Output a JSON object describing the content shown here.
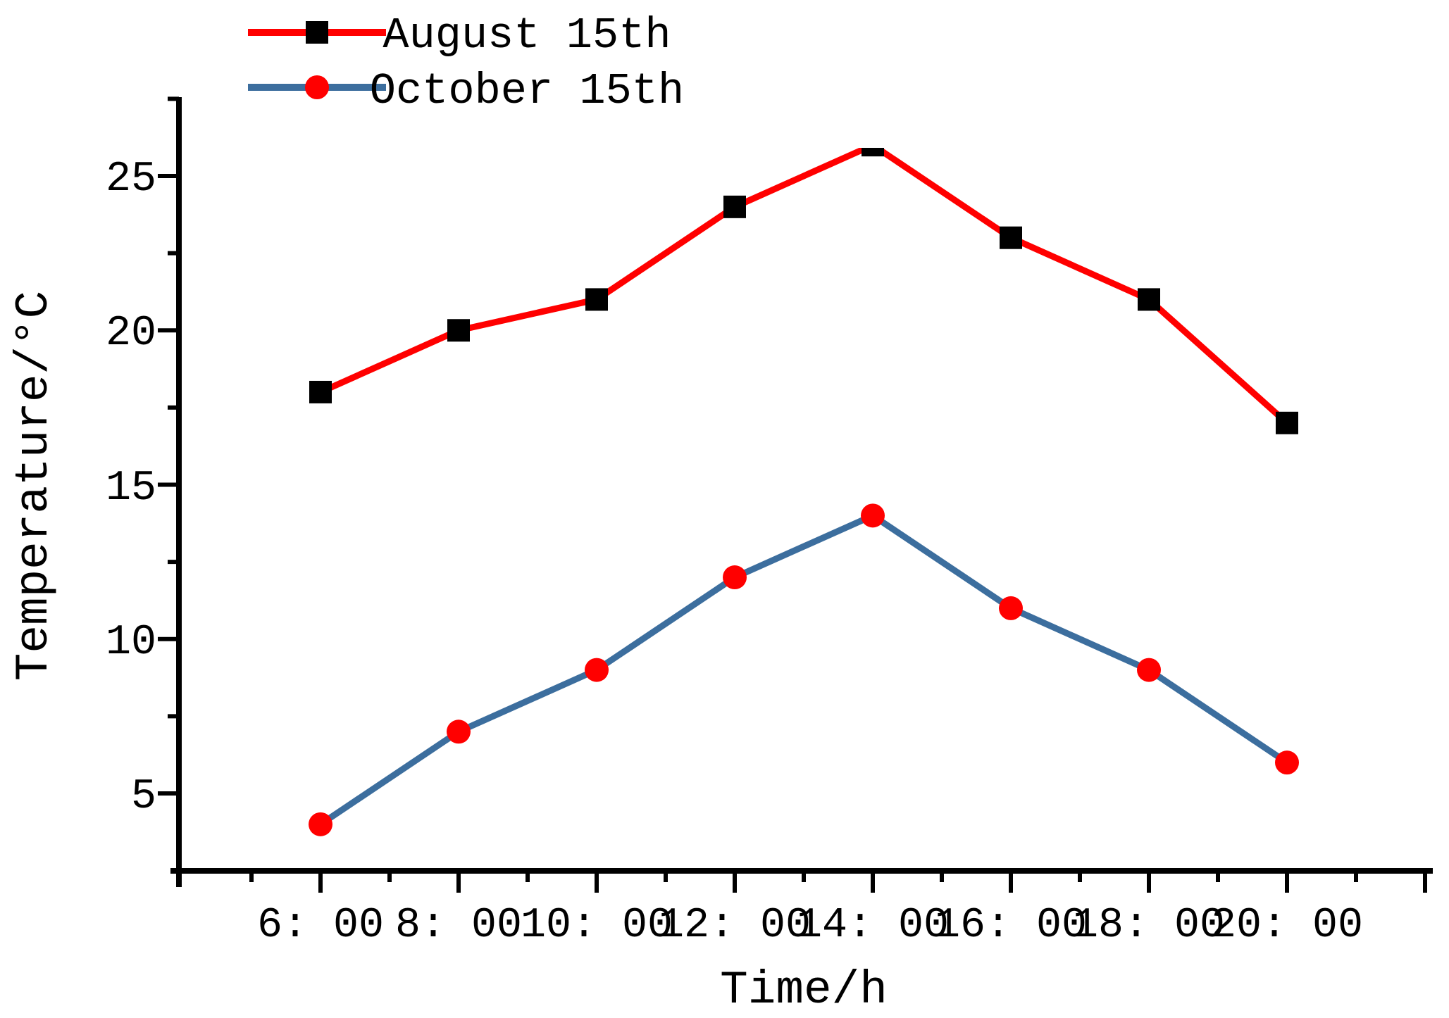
{
  "chart_data": {
    "type": "line",
    "xlabel": "Time/h",
    "ylabel": "Temperature/°C",
    "x_categories": [
      "6: 00",
      "8: 00",
      "10: 00",
      "12: 00",
      "14: 00",
      "16: 00",
      "18: 00",
      "20: 00"
    ],
    "x_hours": [
      6,
      8,
      10,
      12,
      14,
      16,
      18,
      20
    ],
    "series": [
      {
        "name": "August 15th",
        "values": [
          18,
          20,
          21,
          24,
          26,
          23,
          21,
          17
        ],
        "line_color": "#ff0000",
        "marker": "square",
        "marker_color": "#000000",
        "peak_marker_clipped_at_plot_top": true
      },
      {
        "name": "October 15th",
        "values": [
          4,
          7,
          9,
          12,
          14,
          11,
          9,
          6
        ],
        "line_color": "#3c6e9e",
        "marker": "circle",
        "marker_color": "#ff0000"
      }
    ],
    "y_major_ticks": [
      5,
      10,
      15,
      20,
      25
    ],
    "y_minor_ticks": [
      7.5,
      12.5,
      17.5,
      22.5,
      27.5
    ],
    "x_minor_hours": [
      5,
      7,
      9,
      11,
      13,
      15,
      17,
      19,
      21
    ],
    "x_axis_end_hour": 22,
    "ylim": [
      2.5,
      25.9
    ],
    "legend_position": "top-left",
    "grid": false,
    "background": "#ffffff",
    "axis_color": "#000000"
  }
}
